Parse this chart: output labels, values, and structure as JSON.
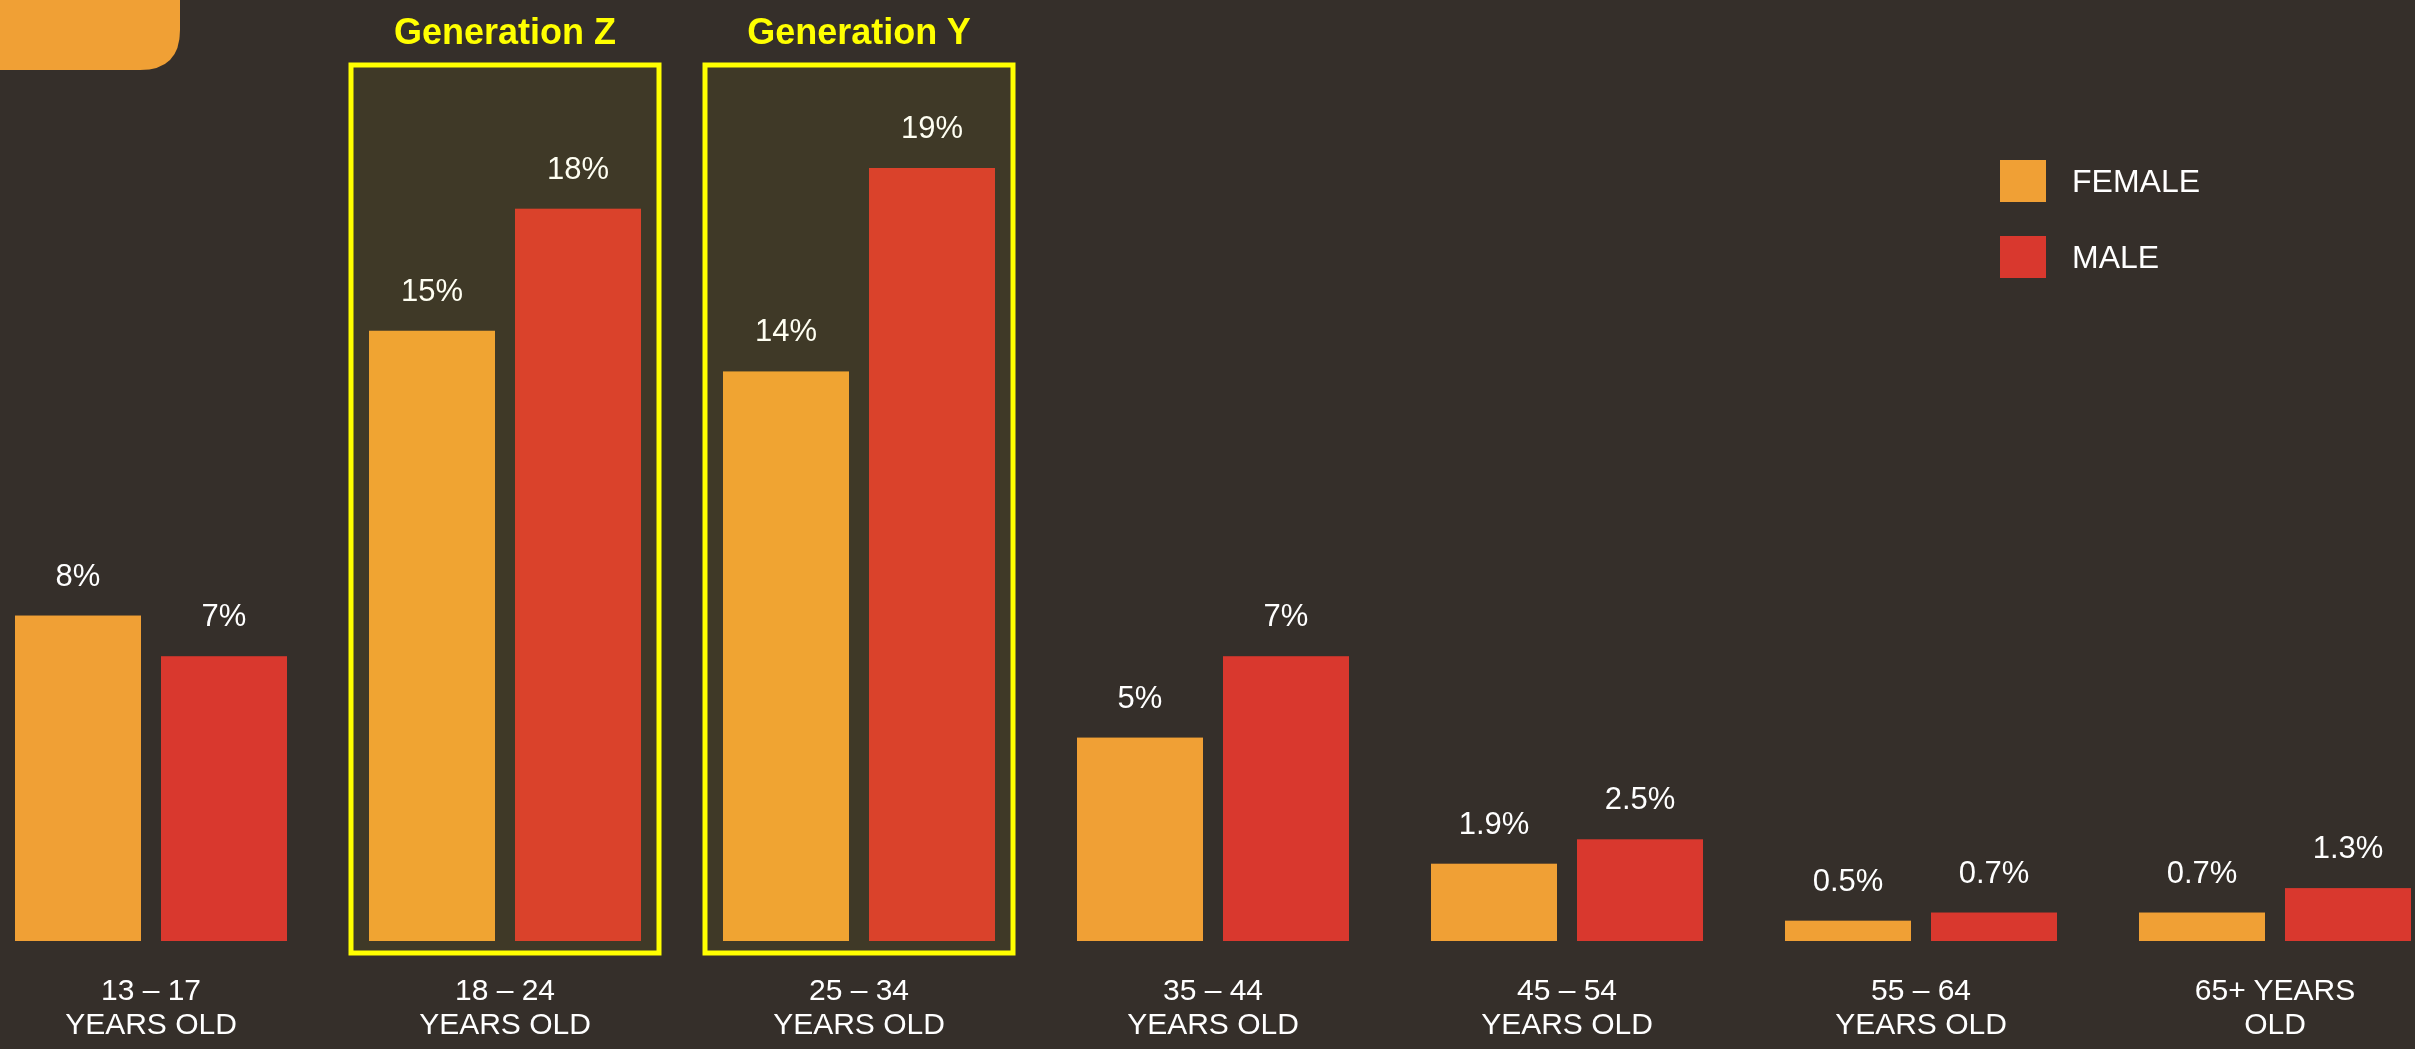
{
  "chart_data": {
    "type": "bar",
    "categories": [
      "13 – 17 YEARS OLD",
      "18 – 24 YEARS OLD",
      "25 – 34 YEARS OLD",
      "35 – 44 YEARS OLD",
      "45 – 54 YEARS OLD",
      "55 – 64 YEARS OLD",
      "65+ YEARS OLD"
    ],
    "series": [
      {
        "name": "FEMALE",
        "color": "#f0a035",
        "values": [
          8,
          15,
          14,
          5,
          1.9,
          0.5,
          0.7
        ],
        "value_labels": [
          "8%",
          "15%",
          "14%",
          "5%",
          "1.9%",
          "0.5%",
          "0.7%"
        ]
      },
      {
        "name": "MALE",
        "color": "#d9382e",
        "values": [
          7,
          18,
          19,
          7,
          2.5,
          0.7,
          1.3
        ],
        "value_labels": [
          "7%",
          "18%",
          "19%",
          "7%",
          "2.5%",
          "0.7%",
          "1.3%"
        ]
      }
    ],
    "legend": "top right",
    "bands": [
      {
        "axis": "x",
        "from": "18 – 24 YEARS OLD",
        "to": "18 – 24 YEARS OLD",
        "label": "Generation Z",
        "color": "#ffff00"
      },
      {
        "axis": "x",
        "from": "25 – 34 YEARS OLD",
        "to": "25 – 34 YEARS OLD",
        "label": "Generation Y",
        "color": "#ffff00"
      }
    ]
  }
}
